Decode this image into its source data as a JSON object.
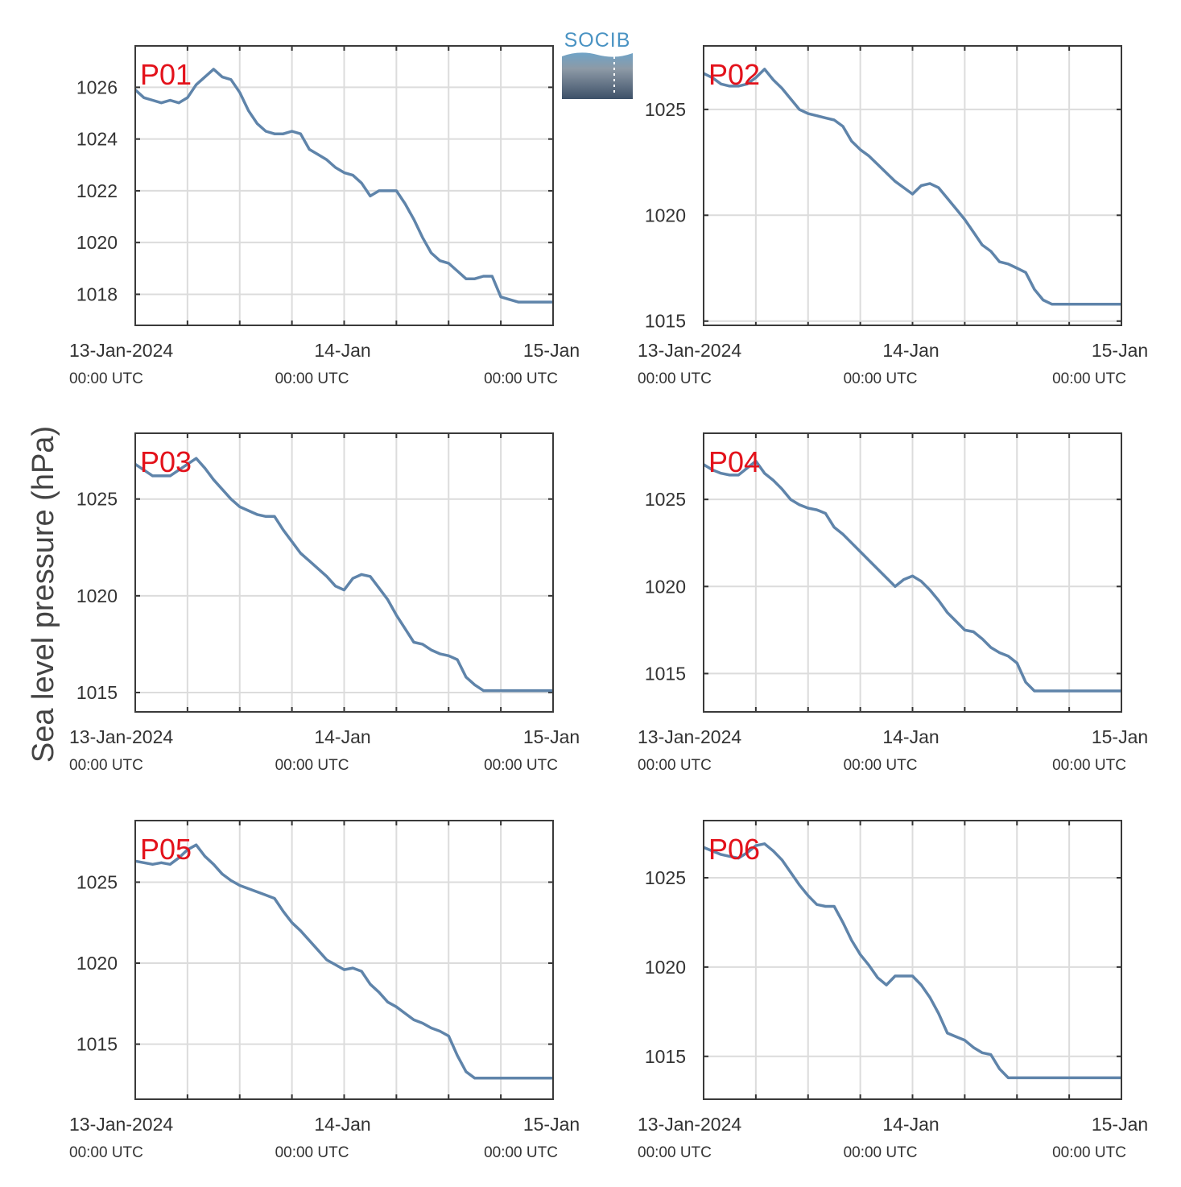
{
  "figure": {
    "ylabel": "Sea level pressure (hPa)",
    "logo": {
      "text": "SOCIB",
      "color": "#4a93c3"
    },
    "line_color": "#5f84aa",
    "label_color": "#e3121b"
  },
  "chart_data": [
    {
      "type": "line",
      "title": "P01",
      "x_range_hours": [
        0,
        48
      ],
      "x_grid_hours": [
        6,
        12,
        18,
        24,
        30,
        36,
        42
      ],
      "x_ticks": [
        {
          "hour": 0,
          "label": "13-Jan-2024",
          "sub": "00:00 UTC"
        },
        {
          "hour": 24,
          "label": "14-Jan",
          "sub": "00:00 UTC"
        },
        {
          "hour": 48,
          "label": "15-Jan",
          "sub": "00:00 UTC"
        }
      ],
      "ylim": [
        1016.8,
        1027.6
      ],
      "yticks": [
        1018,
        1020,
        1022,
        1024,
        1026
      ],
      "series": [
        {
          "x": [
            0,
            1,
            2,
            3,
            4,
            5,
            6,
            7,
            8,
            9,
            10,
            11,
            12,
            13,
            14,
            15,
            16,
            17,
            18,
            19,
            20,
            21,
            22,
            23,
            24,
            25,
            26,
            27,
            28,
            29,
            30,
            31,
            32,
            33,
            34,
            35,
            36,
            37,
            38,
            39,
            40,
            41,
            42,
            43,
            44,
            45,
            46,
            47,
            48
          ],
          "values": [
            1025.9,
            1025.6,
            1025.5,
            1025.4,
            1025.5,
            1025.4,
            1025.6,
            1026.1,
            1026.4,
            1026.7,
            1026.4,
            1026.3,
            1025.8,
            1025.1,
            1024.6,
            1024.3,
            1024.2,
            1024.2,
            1024.3,
            1024.2,
            1023.6,
            1023.4,
            1023.2,
            1022.9,
            1022.7,
            1022.6,
            1022.3,
            1021.8,
            1022.0,
            1022.0,
            1022.0,
            1021.5,
            1020.9,
            1020.2,
            1019.6,
            1019.3,
            1019.2,
            1018.9,
            1018.6,
            1018.6,
            1018.7,
            1018.7,
            1017.9,
            1017.8,
            1017.7,
            1017.7,
            1017.7,
            1017.7,
            1017.7
          ]
        }
      ]
    },
    {
      "type": "line",
      "title": "P02",
      "x_range_hours": [
        0,
        48
      ],
      "x_grid_hours": [
        6,
        12,
        18,
        24,
        30,
        36,
        42
      ],
      "x_ticks": [
        {
          "hour": 0,
          "label": "13-Jan-2024",
          "sub": "00:00 UTC"
        },
        {
          "hour": 24,
          "label": "14-Jan",
          "sub": "00:00 UTC"
        },
        {
          "hour": 48,
          "label": "15-Jan",
          "sub": "00:00 UTC"
        }
      ],
      "ylim": [
        1014.8,
        1028.0
      ],
      "yticks": [
        1015,
        1020,
        1025
      ],
      "series": [
        {
          "x": [
            0,
            1,
            2,
            3,
            4,
            5,
            6,
            7,
            8,
            9,
            10,
            11,
            12,
            13,
            14,
            15,
            16,
            17,
            18,
            19,
            20,
            21,
            22,
            23,
            24,
            25,
            26,
            27,
            28,
            29,
            30,
            31,
            32,
            33,
            34,
            35,
            36,
            37,
            38,
            39,
            40,
            41,
            42,
            43,
            44,
            45,
            46,
            47,
            48
          ],
          "values": [
            1026.7,
            1026.5,
            1026.2,
            1026.1,
            1026.1,
            1026.2,
            1026.5,
            1026.9,
            1026.4,
            1026.0,
            1025.5,
            1025.0,
            1024.8,
            1024.7,
            1024.6,
            1024.5,
            1024.2,
            1023.5,
            1023.1,
            1022.8,
            1022.4,
            1022.0,
            1021.6,
            1021.3,
            1021.0,
            1021.4,
            1021.5,
            1021.3,
            1020.8,
            1020.3,
            1019.8,
            1019.2,
            1018.6,
            1018.3,
            1017.8,
            1017.7,
            1017.5,
            1017.3,
            1016.5,
            1016.0,
            1015.8,
            1015.8,
            1015.8,
            1015.8,
            1015.8,
            1015.8,
            1015.8,
            1015.8,
            1015.8
          ]
        }
      ]
    },
    {
      "type": "line",
      "title": "P03",
      "x_range_hours": [
        0,
        48
      ],
      "x_grid_hours": [
        6,
        12,
        18,
        24,
        30,
        36,
        42
      ],
      "x_ticks": [
        {
          "hour": 0,
          "label": "13-Jan-2024",
          "sub": "00:00 UTC"
        },
        {
          "hour": 24,
          "label": "14-Jan",
          "sub": "00:00 UTC"
        },
        {
          "hour": 48,
          "label": "15-Jan",
          "sub": "00:00 UTC"
        }
      ],
      "ylim": [
        1014.0,
        1028.4
      ],
      "yticks": [
        1015,
        1020,
        1025
      ],
      "series": [
        {
          "x": [
            0,
            1,
            2,
            3,
            4,
            5,
            6,
            7,
            8,
            9,
            10,
            11,
            12,
            13,
            14,
            15,
            16,
            17,
            18,
            19,
            20,
            21,
            22,
            23,
            24,
            25,
            26,
            27,
            28,
            29,
            30,
            31,
            32,
            33,
            34,
            35,
            36,
            37,
            38,
            39,
            40,
            41,
            42,
            43,
            44,
            45,
            46,
            47,
            48
          ],
          "values": [
            1026.8,
            1026.5,
            1026.2,
            1026.2,
            1026.2,
            1026.5,
            1026.8,
            1027.1,
            1026.6,
            1026.0,
            1025.5,
            1025.0,
            1024.6,
            1024.4,
            1024.2,
            1024.1,
            1024.1,
            1023.4,
            1022.8,
            1022.2,
            1021.8,
            1021.4,
            1021.0,
            1020.5,
            1020.3,
            1020.9,
            1021.1,
            1021.0,
            1020.4,
            1019.8,
            1019.0,
            1018.3,
            1017.6,
            1017.5,
            1017.2,
            1017.0,
            1016.9,
            1016.7,
            1015.8,
            1015.4,
            1015.1,
            1015.1,
            1015.1,
            1015.1,
            1015.1,
            1015.1,
            1015.1,
            1015.1,
            1015.1
          ]
        }
      ]
    },
    {
      "type": "line",
      "title": "P04",
      "x_range_hours": [
        0,
        48
      ],
      "x_grid_hours": [
        6,
        12,
        18,
        24,
        30,
        36,
        42
      ],
      "x_ticks": [
        {
          "hour": 0,
          "label": "13-Jan-2024",
          "sub": "00:00 UTC"
        },
        {
          "hour": 24,
          "label": "14-Jan",
          "sub": "00:00 UTC"
        },
        {
          "hour": 48,
          "label": "15-Jan",
          "sub": "00:00 UTC"
        }
      ],
      "ylim": [
        1012.8,
        1028.8
      ],
      "yticks": [
        1015,
        1020,
        1025
      ],
      "series": [
        {
          "x": [
            0,
            1,
            2,
            3,
            4,
            5,
            6,
            7,
            8,
            9,
            10,
            11,
            12,
            13,
            14,
            15,
            16,
            17,
            18,
            19,
            20,
            21,
            22,
            23,
            24,
            25,
            26,
            27,
            28,
            29,
            30,
            31,
            32,
            33,
            34,
            35,
            36,
            37,
            38,
            39,
            40,
            41,
            42,
            43,
            44,
            45,
            46,
            47,
            48
          ],
          "values": [
            1027.0,
            1026.7,
            1026.5,
            1026.4,
            1026.4,
            1026.8,
            1027.2,
            1026.5,
            1026.1,
            1025.6,
            1025.0,
            1024.7,
            1024.5,
            1024.4,
            1024.2,
            1023.4,
            1023.0,
            1022.5,
            1022.0,
            1021.5,
            1021.0,
            1020.5,
            1020.0,
            1020.4,
            1020.6,
            1020.3,
            1019.8,
            1019.2,
            1018.5,
            1018.0,
            1017.5,
            1017.4,
            1017.0,
            1016.5,
            1016.2,
            1016.0,
            1015.6,
            1014.5,
            1014.0,
            1014.0,
            1014.0,
            1014.0,
            1014.0,
            1014.0,
            1014.0,
            1014.0,
            1014.0,
            1014.0,
            1014.0
          ]
        }
      ]
    },
    {
      "type": "line",
      "title": "P05",
      "x_range_hours": [
        0,
        48
      ],
      "x_grid_hours": [
        6,
        12,
        18,
        24,
        30,
        36,
        42
      ],
      "x_ticks": [
        {
          "hour": 0,
          "label": "13-Jan-2024",
          "sub": "00:00 UTC"
        },
        {
          "hour": 24,
          "label": "14-Jan",
          "sub": "00:00 UTC"
        },
        {
          "hour": 48,
          "label": "15-Jan",
          "sub": "00:00 UTC"
        }
      ],
      "ylim": [
        1011.6,
        1028.8
      ],
      "yticks": [
        1015,
        1020,
        1025
      ],
      "series": [
        {
          "x": [
            0,
            1,
            2,
            3,
            4,
            5,
            6,
            7,
            8,
            9,
            10,
            11,
            12,
            13,
            14,
            15,
            16,
            17,
            18,
            19,
            20,
            21,
            22,
            23,
            24,
            25,
            26,
            27,
            28,
            29,
            30,
            31,
            32,
            33,
            34,
            35,
            36,
            37,
            38,
            39,
            40,
            41,
            42,
            43,
            44,
            45,
            46,
            47,
            48
          ],
          "values": [
            1026.3,
            1026.2,
            1026.1,
            1026.2,
            1026.1,
            1026.5,
            1027.0,
            1027.3,
            1026.6,
            1026.1,
            1025.5,
            1025.1,
            1024.8,
            1024.6,
            1024.4,
            1024.2,
            1024.0,
            1023.2,
            1022.5,
            1022.0,
            1021.4,
            1020.8,
            1020.2,
            1019.9,
            1019.6,
            1019.7,
            1019.5,
            1018.7,
            1018.2,
            1017.6,
            1017.3,
            1016.9,
            1016.5,
            1016.3,
            1016.0,
            1015.8,
            1015.5,
            1014.3,
            1013.3,
            1012.9,
            1012.9,
            1012.9,
            1012.9,
            1012.9,
            1012.9,
            1012.9,
            1012.9,
            1012.9,
            1012.9
          ]
        }
      ]
    },
    {
      "type": "line",
      "title": "P06",
      "x_range_hours": [
        0,
        48
      ],
      "x_grid_hours": [
        6,
        12,
        18,
        24,
        30,
        36,
        42
      ],
      "x_ticks": [
        {
          "hour": 0,
          "label": "13-Jan-2024",
          "sub": "00:00 UTC"
        },
        {
          "hour": 24,
          "label": "14-Jan",
          "sub": "00:00 UTC"
        },
        {
          "hour": 48,
          "label": "15-Jan",
          "sub": "00:00 UTC"
        }
      ],
      "ylim": [
        1012.6,
        1028.2
      ],
      "yticks": [
        1015,
        1020,
        1025
      ],
      "series": [
        {
          "x": [
            0,
            1,
            2,
            3,
            4,
            5,
            6,
            7,
            8,
            9,
            10,
            11,
            12,
            13,
            14,
            15,
            16,
            17,
            18,
            19,
            20,
            21,
            22,
            23,
            24,
            25,
            26,
            27,
            28,
            29,
            30,
            31,
            32,
            33,
            34,
            35,
            36,
            37,
            38,
            39,
            40,
            41,
            42,
            43,
            44,
            45,
            46,
            47,
            48
          ],
          "values": [
            1026.7,
            1026.5,
            1026.3,
            1026.2,
            1026.1,
            1026.4,
            1026.8,
            1026.9,
            1026.5,
            1026.0,
            1025.3,
            1024.6,
            1024.0,
            1023.5,
            1023.4,
            1023.4,
            1022.5,
            1021.5,
            1020.7,
            1020.1,
            1019.4,
            1019.0,
            1019.5,
            1019.5,
            1019.5,
            1019.0,
            1018.3,
            1017.4,
            1016.3,
            1016.1,
            1015.9,
            1015.5,
            1015.2,
            1015.1,
            1014.3,
            1013.8,
            1013.8,
            1013.8,
            1013.8,
            1013.8,
            1013.8,
            1013.8,
            1013.8,
            1013.8,
            1013.8,
            1013.8,
            1013.8,
            1013.8,
            1013.8
          ]
        }
      ]
    }
  ]
}
